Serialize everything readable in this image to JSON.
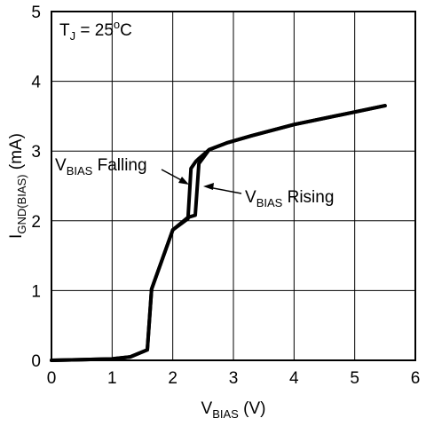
{
  "chart_data": {
    "type": "line",
    "title": "",
    "annotation": {
      "t": "T",
      "t_sub": "J",
      "rest": " = 25",
      "sup": "o",
      "unit": "C"
    },
    "xlabel": {
      "main": "V",
      "sub": "BIAS",
      "unit": " (V)"
    },
    "ylabel": {
      "main": "I",
      "sub": "GND(BIAS)",
      "unit": " (mA)"
    },
    "xlim": [
      0,
      6
    ],
    "ylim": [
      0,
      5
    ],
    "xticks": [
      "0",
      "1",
      "2",
      "3",
      "4",
      "5",
      "6"
    ],
    "yticks": [
      "0",
      "1",
      "2",
      "3",
      "4",
      "5"
    ],
    "grid": true,
    "series": [
      {
        "name": "VBIAS Falling",
        "label": {
          "main": "V",
          "sub": "BIAS",
          "rest": " Falling"
        },
        "x": [
          0,
          0.5,
          1.0,
          1.3,
          1.58,
          1.65,
          2.0,
          2.25,
          2.3,
          2.38,
          2.44,
          2.6,
          2.9,
          3.3,
          4.0,
          5.0,
          5.5
        ],
        "y": [
          0,
          0.01,
          0.02,
          0.05,
          0.15,
          1.02,
          1.87,
          2.03,
          2.75,
          2.85,
          2.9,
          3.02,
          3.12,
          3.22,
          3.38,
          3.56,
          3.65
        ]
      },
      {
        "name": "VBIAS Rising",
        "label": {
          "main": "V",
          "sub": "BIAS",
          "rest": " Rising"
        },
        "x": [
          0,
          0.5,
          1.0,
          1.3,
          1.58,
          1.65,
          2.0,
          2.25,
          2.37,
          2.43,
          2.5,
          2.6,
          2.9,
          3.3,
          4.0,
          5.0,
          5.5
        ],
        "y": [
          0,
          0.01,
          0.02,
          0.05,
          0.15,
          1.02,
          1.87,
          2.05,
          2.08,
          2.82,
          2.9,
          3.02,
          3.12,
          3.22,
          3.38,
          3.56,
          3.65
        ]
      }
    ]
  }
}
